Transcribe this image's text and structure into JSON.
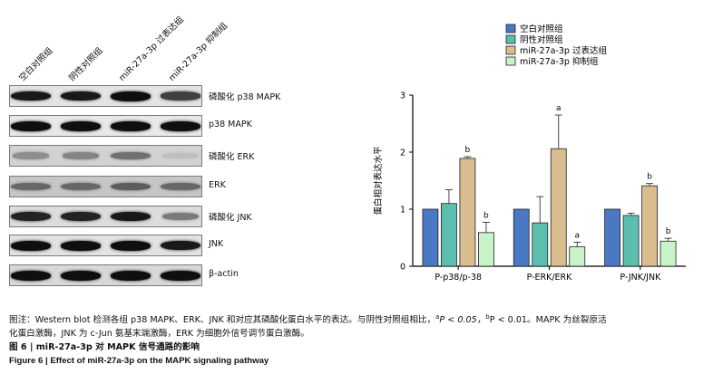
{
  "blot": {
    "lane_labels": [
      "空白对照组",
      "阴性对照组",
      "miR-27a-3p 过表达组",
      "miR-27a-3p 抑制组"
    ],
    "rows": [
      {
        "label": "磷酸化 p38 MAPK",
        "bg": "#e4e4e4",
        "intensity": [
          0.95,
          0.95,
          1.0,
          0.75
        ]
      },
      {
        "label": "p38 MAPK",
        "bg": "#e8e8e8",
        "intensity": [
          1.0,
          1.0,
          1.0,
          1.0
        ]
      },
      {
        "label": "磷酸化 ERK",
        "bg": "#d2d2d2",
        "intensity": [
          0.35,
          0.4,
          0.5,
          0.1
        ]
      },
      {
        "label": "ERK",
        "bg": "#c6c6c6",
        "intensity": [
          0.55,
          0.55,
          0.6,
          0.55
        ]
      },
      {
        "label": "磷酸化 JNK",
        "bg": "#dcdcdc",
        "intensity": [
          0.9,
          0.9,
          0.95,
          0.45
        ]
      },
      {
        "label": "JNK",
        "bg": "#e2e2e2",
        "intensity": [
          1.0,
          1.0,
          1.0,
          0.95
        ]
      },
      {
        "label": "β-actin",
        "bg": "#d8d8d8",
        "intensity": [
          1.0,
          1.0,
          1.0,
          1.0
        ]
      }
    ]
  },
  "chart_data": {
    "type": "bar",
    "ylabel": "蛋白相对表达水平",
    "ylim": [
      0,
      3
    ],
    "yticks": [
      "0",
      "1",
      "2",
      "3"
    ],
    "categories": [
      "P-p38/p-38",
      "P-ERK/ERK",
      "P-JNK/JNK"
    ],
    "legend_position": "top",
    "series": [
      {
        "name": "空白对照组",
        "color": "#4a78c2",
        "values": [
          1.0,
          1.0,
          1.0
        ],
        "errors": [
          0,
          0,
          0
        ],
        "labels": [
          "",
          "",
          ""
        ]
      },
      {
        "name": "阴性对照组",
        "color": "#5cbfae",
        "values": [
          1.1,
          0.76,
          0.89
        ],
        "errors": [
          0.24,
          0.46,
          0.04
        ],
        "labels": [
          "",
          "",
          ""
        ]
      },
      {
        "name": "miR-27a-3p 过表达组",
        "color": "#d9bd8e",
        "values": [
          1.89,
          2.06,
          1.41
        ],
        "errors": [
          0.03,
          0.59,
          0.04
        ],
        "labels": [
          "b",
          "a",
          "b"
        ]
      },
      {
        "name": "miR-27a-3p 抑制组",
        "color": "#c8f2c8",
        "values": [
          0.59,
          0.34,
          0.44
        ],
        "errors": [
          0.18,
          0.08,
          0.05
        ],
        "labels": [
          "b",
          "a",
          "b"
        ]
      }
    ]
  },
  "caption": {
    "line1_a": "图注：Western blot 检测各组 p38 MAPK、ERK、JNK 和对应其磷酸化蛋白水平的表达。与阴性对照组相比，",
    "sup_a": "a",
    "p_a": "P < 0.05，",
    "sup_b": "b",
    "p_b": "P < 0.01。MAPK 为丝裂原活",
    "line2": "化蛋白激酶，JNK 为 c-Jun 氨基末端激酶，ERK 为细胞外信号调节蛋白激酶。",
    "title_cn": "图 6 | miR-27a-3p 对 MAPK 信号通路的影响",
    "title_en": "Figure 6 | Effect of miR-27a-3p on the MAPK signaling pathway"
  }
}
